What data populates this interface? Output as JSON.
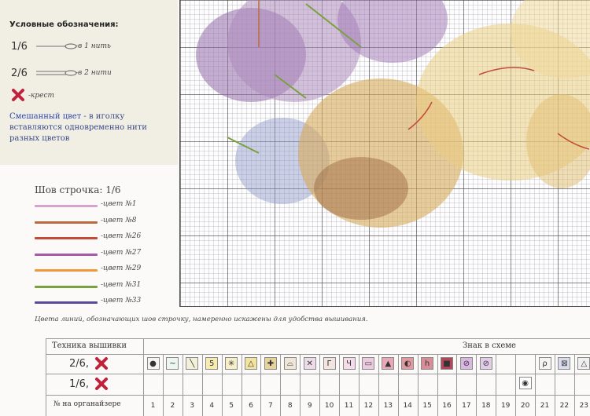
{
  "legend": {
    "title": "Условные обозначения:",
    "one_thread_fraction": "1/6",
    "one_thread_label": "-в 1 нить",
    "two_thread_fraction": "2/6",
    "two_thread_label": "-в 2 нити",
    "cross_label": "-крест",
    "mixed_lead": "Смешанный цвет",
    "mixed_text": " - в иголку вставляются одновременно нити разных цветов",
    "cross_color": "#c0223c"
  },
  "backstitch": {
    "title": "Шов строчка: 1/6",
    "items": [
      {
        "label": "-цвет №1",
        "color": "#d6a3cf"
      },
      {
        "label": "-цвет №8",
        "color": "#b86a3c"
      },
      {
        "label": "-цвет №26",
        "color": "#c44a38"
      },
      {
        "label": "-цвет №27",
        "color": "#a45aa6"
      },
      {
        "label": "-цвет №29",
        "color": "#ef9a3a"
      },
      {
        "label": "-цвет №31",
        "color": "#7aa040"
      },
      {
        "label": "-цвет №33",
        "color": "#5b4a9a"
      }
    ]
  },
  "caption": "Цвета линий, обозначающих шов строчку, намеренно искажены для удобства вышивания.",
  "table": {
    "technique_header": "Техника вышивки",
    "symbol_header": "Знак в схеме",
    "row1_fraction": "2/6,",
    "row2_fraction": "1/6,",
    "number_header": "№ на органайзере",
    "numbers": [
      "1",
      "2",
      "3",
      "4",
      "5",
      "6",
      "7",
      "8",
      "9",
      "10",
      "11",
      "12",
      "13",
      "14",
      "15",
      "16",
      "17",
      "18",
      "19",
      "20",
      "21",
      "22",
      "23"
    ],
    "symbols": [
      "●",
      "~",
      "╲",
      "5",
      "✳",
      "△",
      "✚",
      "⌓",
      "✕",
      "Г",
      "Ч",
      "▭",
      "▲",
      "◐",
      "h",
      "■",
      "⊘",
      "⊘",
      "",
      "",
      "ρ",
      "⊠",
      "△"
    ],
    "symbol_colors": [
      "#f4f4f4",
      "#eef6f2",
      "#f2f0d8",
      "#f7ecb0",
      "#f6efc8",
      "#f2e3a0",
      "#e6d49a",
      "#f0e6d8",
      "#ecdce8",
      "#f2e4e0",
      "#f4dcea",
      "#eccbe0",
      "#e8a8b8",
      "#e29aa0",
      "#d88e98",
      "#b4485a",
      "#d8b8e0",
      "#e2cce8",
      "#ffffff",
      "#ffffff",
      "#f4f4f4",
      "#d8dcec",
      "#f0f0f0"
    ],
    "row2_symbol": "◉"
  }
}
